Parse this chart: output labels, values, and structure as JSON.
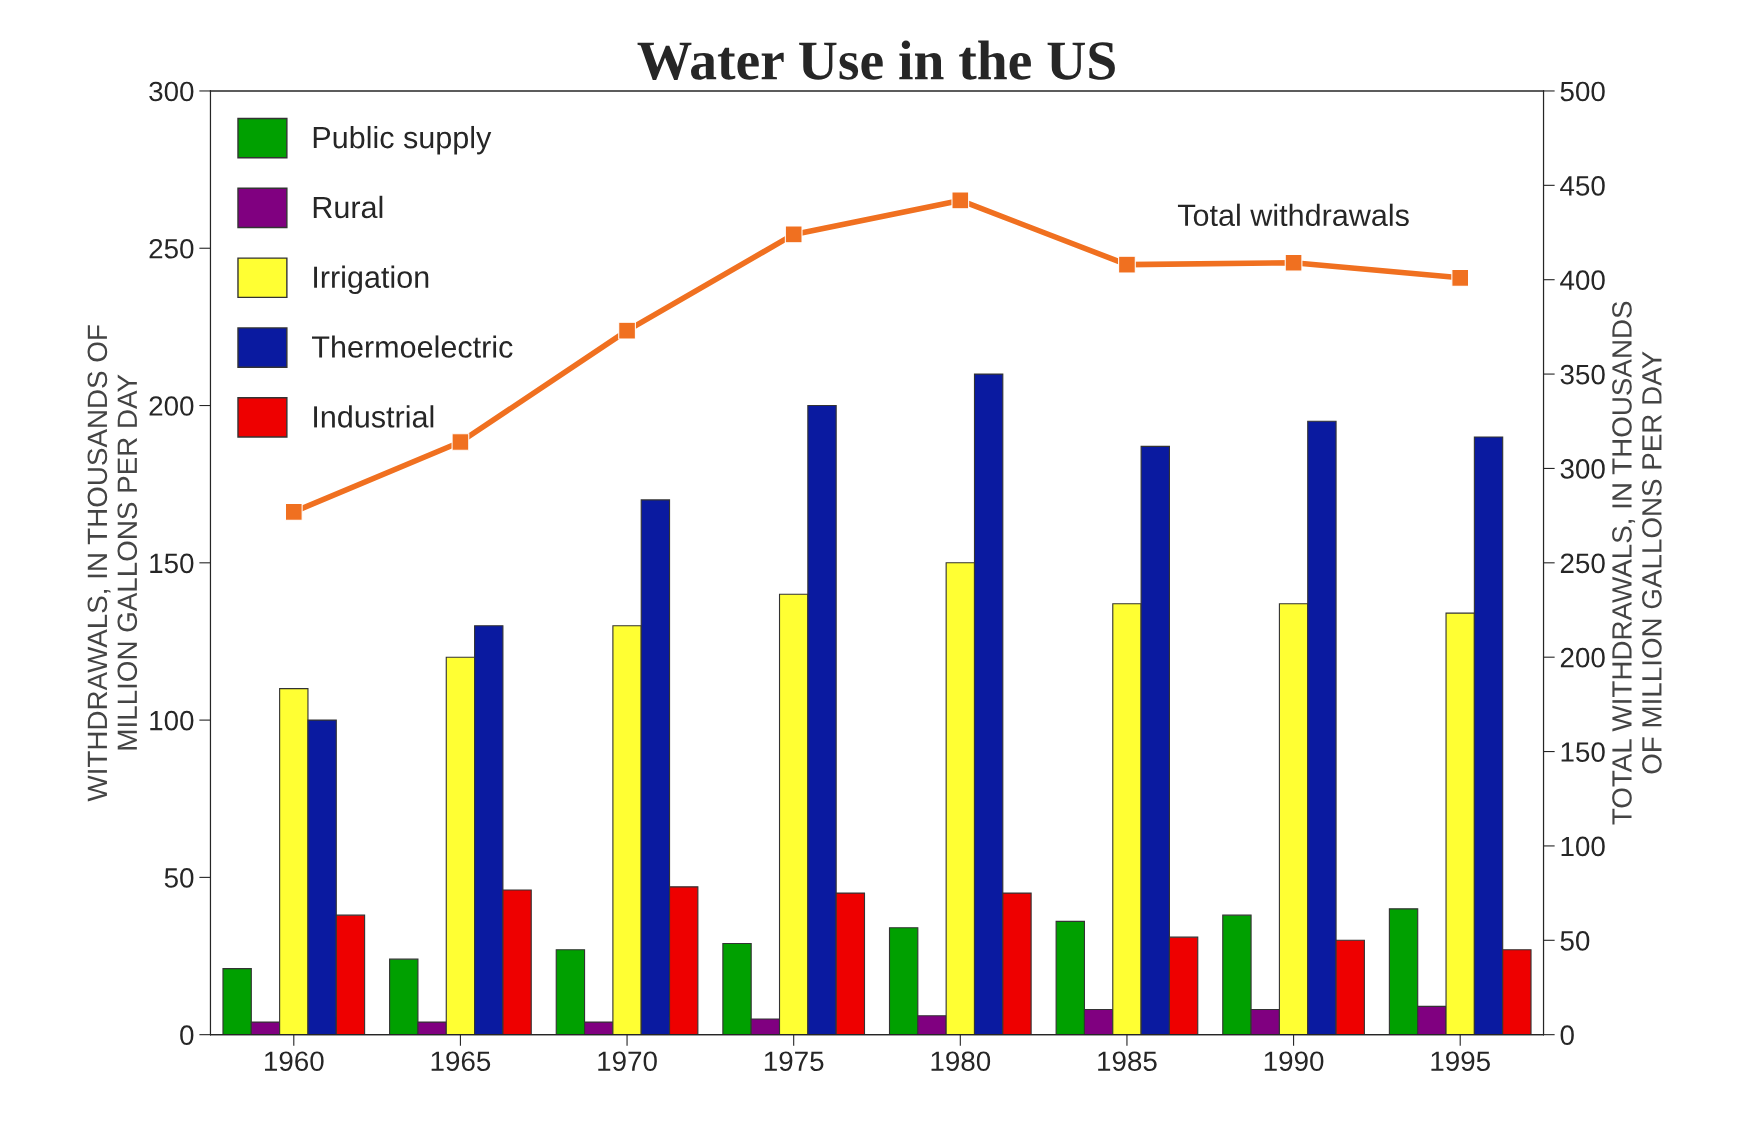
{
  "chart_data": {
    "type": "bar",
    "title": "Water Use in the US",
    "ylabel": "WITHDRAWALS, IN THOUSANDS OF\nMILLION GALLONS PER DAY",
    "y2label": "TOTAL WITHDRAWALS, IN THOUSANDS\nOF MILLION GALLONS PER DAY",
    "categories": [
      "1960",
      "1965",
      "1970",
      "1975",
      "1980",
      "1985",
      "1990",
      "1995"
    ],
    "series": [
      {
        "name": "Public supply",
        "color": "#00a000",
        "values": [
          21,
          24,
          27,
          29,
          34,
          36,
          38,
          40
        ]
      },
      {
        "name": "Rural",
        "color": "#800080",
        "values": [
          4,
          4,
          4,
          5,
          6,
          8,
          8,
          9
        ]
      },
      {
        "name": "Irrigation",
        "color": "#ffff33",
        "values": [
          110,
          120,
          130,
          140,
          150,
          137,
          137,
          134
        ]
      },
      {
        "name": "Thermoelectric",
        "color": "#0a1aa0",
        "values": [
          100,
          130,
          170,
          200,
          210,
          187,
          195,
          190
        ]
      },
      {
        "name": "Industrial",
        "color": "#ee0000",
        "values": [
          38,
          46,
          47,
          45,
          45,
          31,
          30,
          27
        ]
      },
      {
        "name": "Total withdrawals",
        "type": "line",
        "axis": "y2",
        "color": "#f07020",
        "marker": "square",
        "values": [
          277,
          314,
          373,
          424,
          442,
          408,
          409,
          401
        ]
      }
    ],
    "ylim": [
      0,
      300
    ],
    "yticks": [
      0,
      50,
      100,
      150,
      200,
      250,
      300
    ],
    "y2lim": [
      0,
      500
    ],
    "y2ticks": [
      0,
      50,
      100,
      150,
      200,
      250,
      300,
      350,
      400,
      450,
      500
    ],
    "grid": false,
    "legend": "top left"
  }
}
